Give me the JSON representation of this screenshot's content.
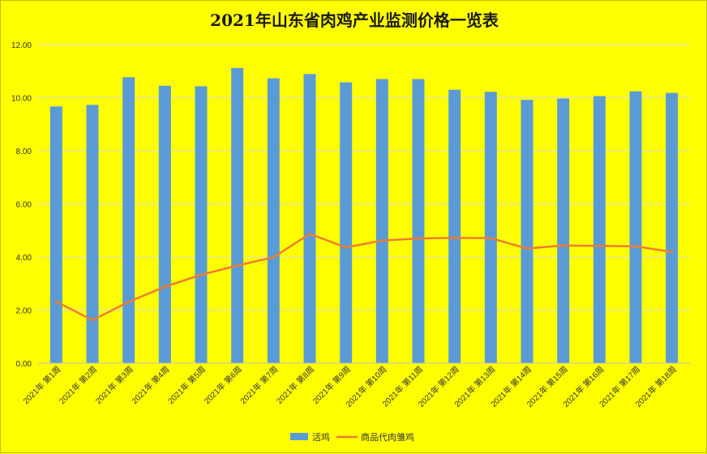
{
  "chart_data": {
    "type": "bar",
    "title": "2021年山东省肉鸡产业监测价格一览表",
    "categories": [
      "2021年 第1周",
      "2021年 第2周",
      "2021年 第3周",
      "2021年 第4周",
      "2021年 第5周",
      "2021年 第6周",
      "2021年 第7周",
      "2021年 第8周",
      "2021年 第9周",
      "2021年 第10周",
      "2021年 第11周",
      "2021年 第12周",
      "2021年 第13周",
      "2021年 第14周",
      "2021年 第15周",
      "2021年 第16周",
      "2021年 第17周",
      "2021年 第18周"
    ],
    "series": [
      {
        "name": "活鸡",
        "type": "bar",
        "color": "#5b9bd5",
        "values": [
          9.67,
          9.73,
          10.77,
          10.45,
          10.43,
          11.12,
          10.73,
          10.89,
          10.58,
          10.7,
          10.7,
          10.3,
          10.22,
          9.92,
          9.97,
          10.06,
          10.24,
          10.18
        ]
      },
      {
        "name": "商品代肉雏鸡",
        "type": "line",
        "color": "#ed7d31",
        "values": [
          2.32,
          1.62,
          2.31,
          2.88,
          3.33,
          3.68,
          3.99,
          4.87,
          4.36,
          4.62,
          4.7,
          4.72,
          4.71,
          4.32,
          4.43,
          4.42,
          4.4,
          4.19
        ]
      }
    ],
    "ylim": [
      0,
      12
    ],
    "yticks": [
      "0.00",
      "2.00",
      "4.00",
      "6.00",
      "8.00",
      "10.00",
      "12.00"
    ],
    "xlabel": "",
    "ylabel": "",
    "legend": "bottom"
  }
}
